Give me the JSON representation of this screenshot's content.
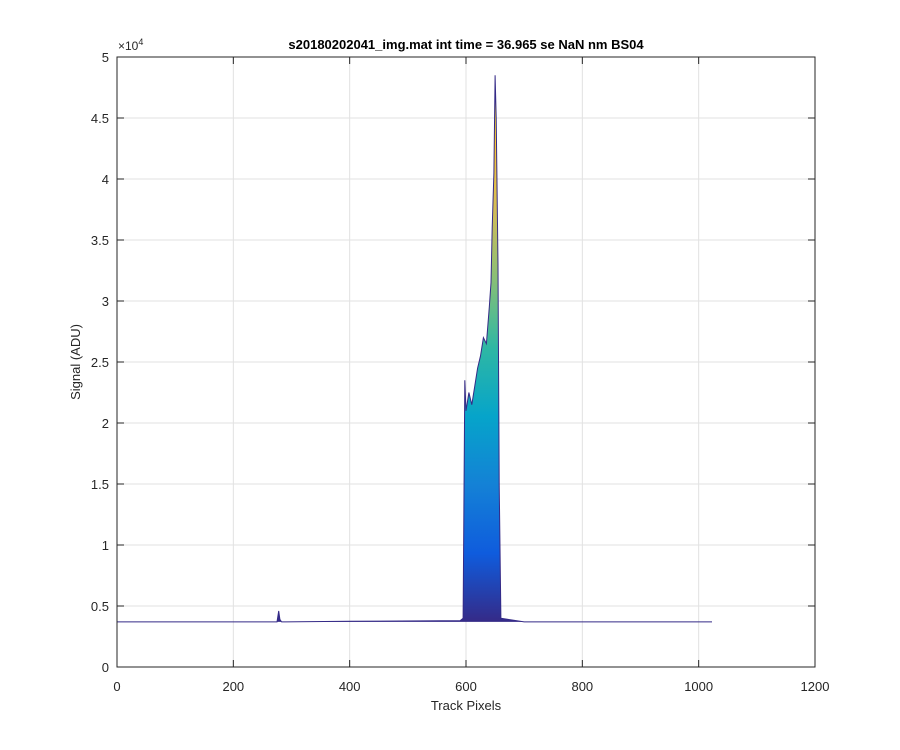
{
  "chart_data": {
    "type": "area",
    "title": "s20180202041_img.mat int time = 36.965 se  NaN nm BS04",
    "xlabel": "Track Pixels",
    "ylabel": "Signal (ADU)",
    "y_exponent_label": "×10",
    "y_exponent_power": "4",
    "xlim": [
      0,
      1200
    ],
    "ylim": [
      0,
      50000
    ],
    "xticks": [
      0,
      200,
      400,
      600,
      800,
      1000,
      1200
    ],
    "yticks": [
      0,
      5000,
      10000,
      15000,
      20000,
      25000,
      30000,
      35000,
      40000,
      45000,
      50000
    ],
    "xtick_labels": [
      "0",
      "200",
      "400",
      "600",
      "800",
      "1000",
      "1200"
    ],
    "ytick_labels": [
      "0",
      "0.5",
      "1",
      "1.5",
      "2",
      "2.5",
      "3",
      "3.5",
      "4",
      "4.5",
      "5"
    ],
    "grid": true,
    "colormap": [
      "#352a87",
      "#0f5cdd",
      "#1481d6",
      "#06a4ca",
      "#2eb7a4",
      "#87bf77",
      "#d1bb59",
      "#fec832",
      "#f9fb0e"
    ],
    "baseline": 3700,
    "series": [
      {
        "x": [
          0,
          275,
          278,
          280,
          283,
          290,
          400,
          590,
          595,
          598,
          600,
          605,
          610,
          615,
          620,
          625,
          630,
          635,
          640,
          643,
          645,
          648,
          650,
          652,
          653,
          655,
          657,
          660,
          700,
          800,
          1023
        ],
        "y": [
          3700,
          3700,
          4600,
          3900,
          3700,
          3700,
          3750,
          3800,
          4000,
          23500,
          21000,
          22500,
          21500,
          23000,
          24500,
          25500,
          27000,
          26500,
          29500,
          31500,
          36000,
          40500,
          48500,
          45000,
          41000,
          33000,
          15000,
          4000,
          3700,
          3700,
          3700
        ]
      }
    ]
  }
}
